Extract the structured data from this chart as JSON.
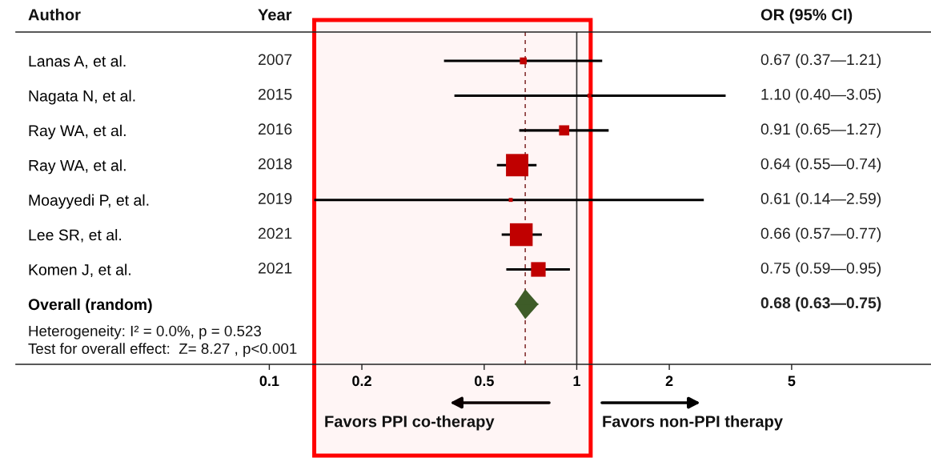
{
  "chart_data": {
    "type": "scatter",
    "orientation": "horizontal",
    "log": "x",
    "categories": [
      "Lanas A, et al.",
      "Nagata N, et al.",
      "Ray WA, et al.",
      "Ray WA, et al.",
      "Moayyedi P, et al.",
      "Lee SR, et al.",
      "Komen J, et al.",
      "Overall (random)"
    ],
    "y2_categories": [
      "2007",
      "2015",
      "2016",
      "2018",
      "2019",
      "2021",
      "2021",
      null
    ],
    "series": [
      {
        "type": "bubble",
        "marker": "square",
        "color": "#c00000",
        "values": [
          0.67,
          1.1,
          0.91,
          0.64,
          0.61,
          0.66,
          0.75,
          null
        ],
        "errors": [
          [
            0.37,
            1.21
          ],
          [
            0.4,
            3.05
          ],
          [
            0.65,
            1.27
          ],
          [
            0.55,
            0.74
          ],
          [
            0.14,
            2.59
          ],
          [
            0.57,
            0.77
          ],
          [
            0.59,
            0.95
          ],
          null
        ],
        "sizes": [
          0.09,
          0.03,
          0.2,
          0.96,
          0.03,
          1,
          0.41,
          null
        ]
      },
      {
        "marker": "diamond",
        "color": "#3e5c28",
        "values": [
          null,
          null,
          null,
          null,
          null,
          null,
          null,
          0.68
        ],
        "errors": [
          null,
          null,
          null,
          null,
          null,
          null,
          null,
          [
            0.63,
            0.75
          ]
        ]
      }
    ],
    "xlim": [
      0.015,
      14.2
    ],
    "xticks": [
      0.1,
      0.2,
      0.5,
      1,
      2,
      5
    ],
    "ref_lines": [
      {
        "axis": "x",
        "value": 0.68,
        "color": "#8b3a3a",
        "line_style": "dashed"
      },
      {
        "axis": "x",
        "value": 1,
        "color": "#333333",
        "line_style": "solid"
      }
    ],
    "bands": [
      {
        "axis": "x",
        "from": 0.14,
        "to": 1.11,
        "color": "#ff0000"
      }
    ],
    "annotations": [
      "Author",
      "Year",
      "OR (95% CI)",
      "0.67 (0.37—1.21)",
      "1.10 (0.40—3.05)",
      "0.91 (0.65—1.27)",
      "0.64 (0.55—0.74)",
      "0.61 (0.14—2.59)",
      "0.66 (0.57—0.77)",
      "0.75 (0.59—0.95)",
      "0.68 (0.63—0.75)",
      "Heterogeneity: I² = 0.0%, p = 0.523",
      "Test for overall effect:  Z= 8.27 , p<0.001",
      "Favors PPI co-therapy",
      "Favors non-PPI therapy"
    ]
  }
}
